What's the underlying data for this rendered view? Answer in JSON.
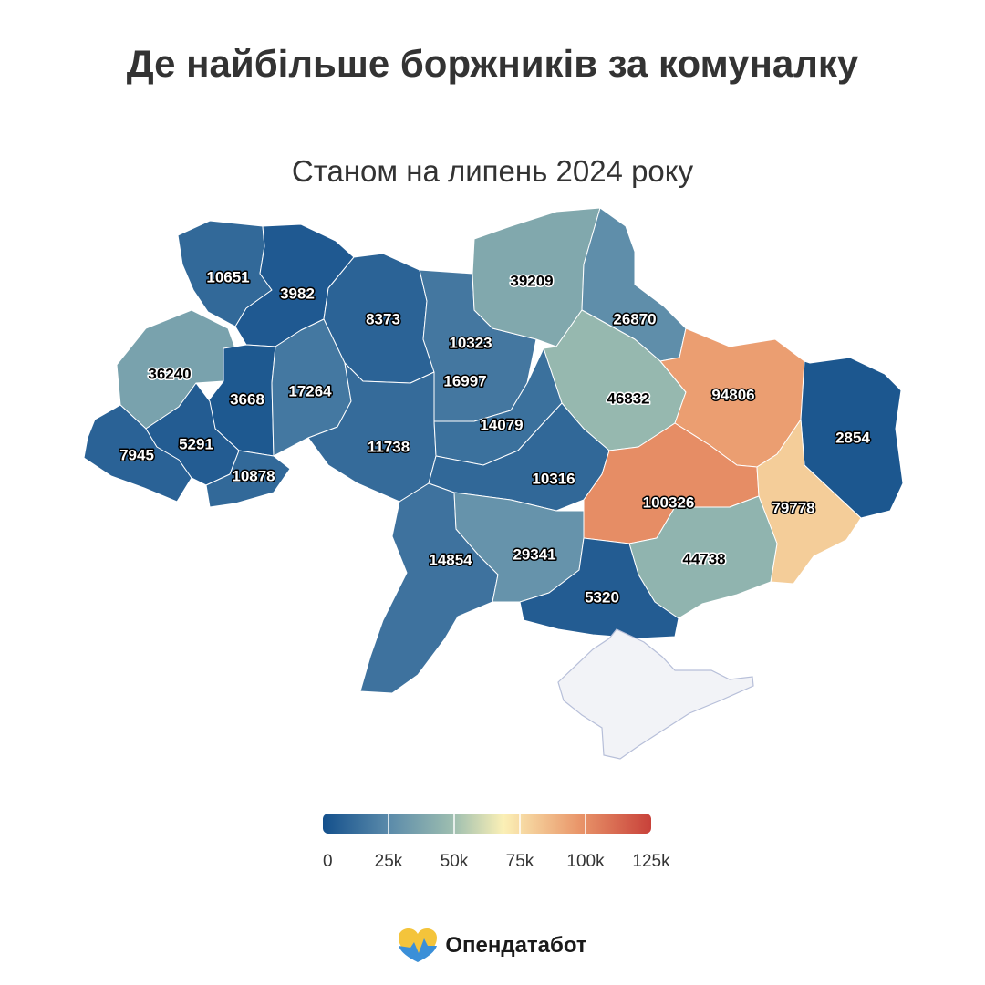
{
  "title": "Де найбільше боржників за комуналку",
  "subtitle": "Станом на липень 2024 року",
  "brand": {
    "name": "Опендатабот",
    "logo_icon": "opendatabot-heart-icon",
    "logo_colors": [
      "#f4c43b",
      "#3a8fd8"
    ]
  },
  "legend": {
    "min": 0,
    "max": 125000,
    "tick_labels": [
      "0",
      "25k",
      "50k",
      "75k",
      "100k",
      "125k"
    ],
    "tick_values": [
      0,
      25000,
      50000,
      75000,
      100000,
      125000
    ],
    "colors": [
      "#14508c",
      "#5a8aaa",
      "#9fbfb0",
      "#fbf0b6",
      "#e9966a",
      "#c8413a"
    ]
  },
  "crimea_color": "#f2f3f7",
  "chart_data": {
    "type": "choropleth",
    "title": "Де найбільше боржників за комуналку",
    "subtitle": "Станом на липень 2024 року",
    "color_scale": {
      "min": 0,
      "max": 125000
    },
    "regions": [
      {
        "id": "volyn",
        "value": 10651
      },
      {
        "id": "rivne",
        "value": 3982
      },
      {
        "id": "zhytomyr",
        "value": 8373
      },
      {
        "id": "kyiv-city",
        "value": 10323
      },
      {
        "id": "kyiv-oblast",
        "value": 16997
      },
      {
        "id": "chernihiv",
        "value": 39209
      },
      {
        "id": "sumy",
        "value": 26870
      },
      {
        "id": "lviv",
        "value": 36240
      },
      {
        "id": "ternopil",
        "value": 3668
      },
      {
        "id": "khmelnytskyi",
        "value": 17264
      },
      {
        "id": "poltava",
        "value": 46832
      },
      {
        "id": "kharkiv",
        "value": 94806
      },
      {
        "id": "luhansk",
        "value": 2854
      },
      {
        "id": "zakarpattia",
        "value": 7945
      },
      {
        "id": "ivano-frankivsk",
        "value": 5291
      },
      {
        "id": "chernivtsi",
        "value": 10878
      },
      {
        "id": "vinnytsia",
        "value": 11738
      },
      {
        "id": "cherkasy",
        "value": 14079
      },
      {
        "id": "kirovohrad",
        "value": 10316
      },
      {
        "id": "dnipropetrovsk",
        "value": 100326
      },
      {
        "id": "donetsk",
        "value": 79778
      },
      {
        "id": "odesa",
        "value": 14854
      },
      {
        "id": "mykolaiv",
        "value": 29341
      },
      {
        "id": "zaporizhzhia",
        "value": 44738
      },
      {
        "id": "kherson",
        "value": 5320
      }
    ]
  }
}
